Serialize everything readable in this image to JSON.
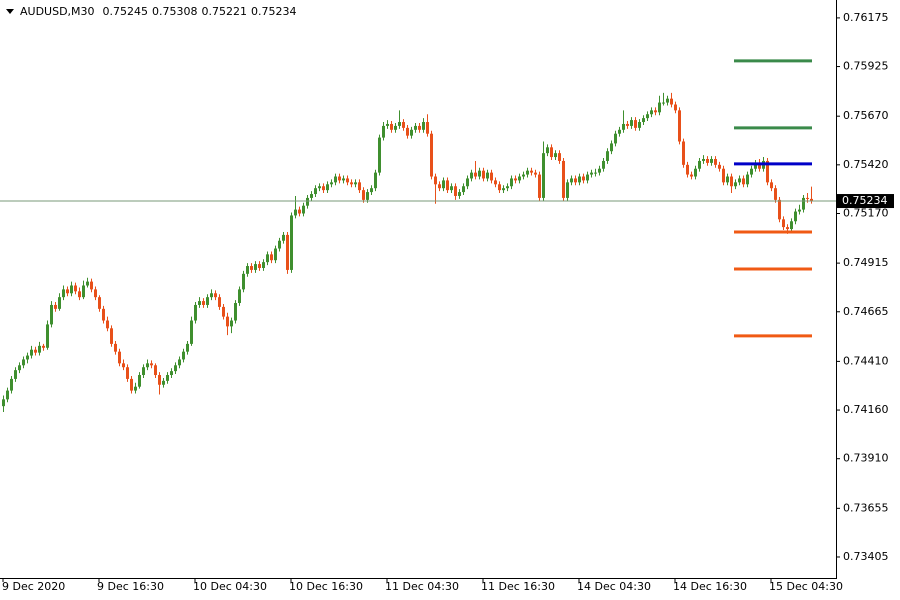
{
  "chart_data": {
    "type": "candlestick",
    "symbol": "AUDUSD,M30",
    "ylim": [
      0.73297,
      0.76267
    ],
    "yticks": [
      0.76175,
      0.75925,
      {
        "value": 0.7567,
        "label": "0.75670"
      },
      {
        "value": 0.7542,
        "label": "0.75420"
      },
      {
        "value": 0.7517,
        "label": "0.75170"
      },
      0.74915,
      0.74665,
      {
        "value": 0.7441,
        "label": "0.74410"
      },
      {
        "value": 0.7416,
        "label": "0.74160"
      },
      {
        "value": 0.7391,
        "label": "0.73910"
      },
      0.73655,
      0.73405
    ],
    "xticks": [
      {
        "value": 0,
        "label": "9 Dec 2020"
      },
      {
        "value": 24,
        "label": "9 Dec 16:30"
      },
      {
        "value": 48,
        "label": "10 Dec 04:30"
      },
      {
        "value": 72,
        "label": "10 Dec 16:30"
      },
      {
        "value": 96,
        "label": "11 Dec 04:30"
      },
      {
        "value": 120,
        "label": "11 Dec 16:30"
      },
      {
        "value": 144,
        "label": "14 Dec 04:30"
      },
      {
        "value": 168,
        "label": "14 Dec 16:30"
      },
      {
        "value": 192,
        "label": "15 Dec 04:30"
      }
    ],
    "up_color": "#3f8f2f",
    "down_color": "#e8501a",
    "levels": [
      {
        "value": 0.75954,
        "color": "#3a8a4a"
      },
      {
        "value": 0.7561,
        "color": "#3a8a4a"
      },
      {
        "value": 0.75425,
        "color": "#0000c8"
      },
      {
        "value": 0.75075,
        "color": "#f05a14"
      },
      {
        "value": 0.74885,
        "color": "#f05a14"
      },
      {
        "value": 0.74541,
        "color": "#f05a14"
      }
    ],
    "candles": [
      [
        0.7418,
        0.74235,
        0.7415,
        0.74215
      ],
      [
        0.74215,
        0.74275,
        0.742,
        0.7426
      ],
      [
        0.7426,
        0.74335,
        0.74245,
        0.7432
      ],
      [
        0.7432,
        0.7438,
        0.74305,
        0.74365
      ],
      [
        0.74365,
        0.74405,
        0.7435,
        0.7439
      ],
      [
        0.7439,
        0.74435,
        0.74375,
        0.7442
      ],
      [
        0.7442,
        0.74455,
        0.744,
        0.7444
      ],
      [
        0.7444,
        0.7449,
        0.74425,
        0.7447
      ],
      [
        0.7447,
        0.74485,
        0.7444,
        0.74455
      ],
      [
        0.74455,
        0.7451,
        0.7444,
        0.7449
      ],
      [
        0.7449,
        0.745,
        0.74465,
        0.7448
      ],
      [
        0.7448,
        0.7462,
        0.7447,
        0.746
      ],
      [
        0.746,
        0.7472,
        0.74585,
        0.747
      ],
      [
        0.747,
        0.74715,
        0.74665,
        0.7468
      ],
      [
        0.7468,
        0.7476,
        0.7467,
        0.7474
      ],
      [
        0.7474,
        0.748,
        0.74725,
        0.7478
      ],
      [
        0.7478,
        0.74795,
        0.74745,
        0.7476
      ],
      [
        0.7476,
        0.7482,
        0.74745,
        0.748
      ],
      [
        0.748,
        0.74815,
        0.74755,
        0.7477
      ],
      [
        0.7477,
        0.7479,
        0.74725,
        0.7474
      ],
      [
        0.7474,
        0.74825,
        0.7473,
        0.748
      ],
      [
        0.748,
        0.7484,
        0.7479,
        0.7482
      ],
      [
        0.7482,
        0.74835,
        0.74765,
        0.7478
      ],
      [
        0.7478,
        0.74795,
        0.74725,
        0.7474
      ],
      [
        0.7474,
        0.7475,
        0.74665,
        0.7468
      ],
      [
        0.7468,
        0.74695,
        0.74605,
        0.7462
      ],
      [
        0.7462,
        0.7464,
        0.74565,
        0.7458
      ],
      [
        0.7458,
        0.74595,
        0.74485,
        0.745
      ],
      [
        0.745,
        0.74515,
        0.74445,
        0.7446
      ],
      [
        0.7446,
        0.74475,
        0.74385,
        0.744
      ],
      [
        0.744,
        0.7442,
        0.74365,
        0.7438
      ],
      [
        0.7438,
        0.74395,
        0.74305,
        0.7432
      ],
      [
        0.7432,
        0.74335,
        0.74245,
        0.7426
      ],
      [
        0.7426,
        0.743,
        0.74245,
        0.7428
      ],
      [
        0.7428,
        0.74355,
        0.7427,
        0.7434
      ],
      [
        0.7434,
        0.74395,
        0.74325,
        0.7438
      ],
      [
        0.7438,
        0.7442,
        0.74365,
        0.744
      ],
      [
        0.744,
        0.74415,
        0.74375,
        0.7439
      ],
      [
        0.7439,
        0.744,
        0.74325,
        0.7434
      ],
      [
        0.7434,
        0.74355,
        0.7424,
        0.7429
      ],
      [
        0.7429,
        0.74325,
        0.74275,
        0.7431
      ],
      [
        0.7431,
        0.74355,
        0.74295,
        0.7434
      ],
      [
        0.7434,
        0.74375,
        0.74325,
        0.7436
      ],
      [
        0.7436,
        0.74405,
        0.74345,
        0.7439
      ],
      [
        0.7439,
        0.74435,
        0.74375,
        0.7442
      ],
      [
        0.7442,
        0.74475,
        0.74405,
        0.7446
      ],
      [
        0.7446,
        0.74515,
        0.74445,
        0.745
      ],
      [
        0.745,
        0.7464,
        0.7449,
        0.7462
      ],
      [
        0.7462,
        0.74715,
        0.74605,
        0.747
      ],
      [
        0.747,
        0.7474,
        0.74685,
        0.7472
      ],
      [
        0.7472,
        0.74735,
        0.74685,
        0.747
      ],
      [
        0.747,
        0.74755,
        0.74685,
        0.7474
      ],
      [
        0.7474,
        0.7478,
        0.74725,
        0.7476
      ],
      [
        0.7476,
        0.74775,
        0.74725,
        0.7474
      ],
      [
        0.7474,
        0.74755,
        0.74675,
        0.7469
      ],
      [
        0.7469,
        0.74705,
        0.74625,
        0.7464
      ],
      [
        0.7464,
        0.7466,
        0.74545,
        0.7459
      ],
      [
        0.7459,
        0.74635,
        0.74555,
        0.7462
      ],
      [
        0.7462,
        0.74725,
        0.74605,
        0.7471
      ],
      [
        0.7471,
        0.74795,
        0.74695,
        0.7478
      ],
      [
        0.7478,
        0.74875,
        0.74765,
        0.7486
      ],
      [
        0.7486,
        0.74915,
        0.74845,
        0.749
      ],
      [
        0.749,
        0.74915,
        0.74865,
        0.7488
      ],
      [
        0.7488,
        0.74925,
        0.74865,
        0.7491
      ],
      [
        0.7491,
        0.74925,
        0.74875,
        0.7489
      ],
      [
        0.7489,
        0.74935,
        0.74875,
        0.7492
      ],
      [
        0.7492,
        0.74975,
        0.74905,
        0.7496
      ],
      [
        0.7496,
        0.74975,
        0.74915,
        0.7493
      ],
      [
        0.7493,
        0.75005,
        0.74915,
        0.7499
      ],
      [
        0.7499,
        0.75045,
        0.74975,
        0.7503
      ],
      [
        0.7503,
        0.75075,
        0.75015,
        0.7506
      ],
      [
        0.7506,
        0.75075,
        0.7486,
        0.7488
      ],
      [
        0.7488,
        0.75175,
        0.74865,
        0.7516
      ],
      [
        0.7516,
        0.7526,
        0.75145,
        0.7519
      ],
      [
        0.7519,
        0.75205,
        0.75155,
        0.7517
      ],
      [
        0.7517,
        0.75225,
        0.75155,
        0.7521
      ],
      [
        0.7521,
        0.75265,
        0.75195,
        0.7525
      ],
      [
        0.7525,
        0.75285,
        0.75235,
        0.7527
      ],
      [
        0.7527,
        0.75315,
        0.75255,
        0.753
      ],
      [
        0.753,
        0.75325,
        0.75285,
        0.7531
      ],
      [
        0.7531,
        0.75325,
        0.75275,
        0.7529
      ],
      [
        0.7529,
        0.75335,
        0.75275,
        0.7532
      ],
      [
        0.7532,
        0.75345,
        0.75305,
        0.7533
      ],
      [
        0.7533,
        0.75375,
        0.75315,
        0.7536
      ],
      [
        0.7536,
        0.75375,
        0.75325,
        0.7534
      ],
      [
        0.7534,
        0.75365,
        0.75325,
        0.7535
      ],
      [
        0.7535,
        0.75365,
        0.75315,
        0.7533
      ],
      [
        0.7533,
        0.75345,
        0.75305,
        0.7532
      ],
      [
        0.7532,
        0.75345,
        0.75305,
        0.7533
      ],
      [
        0.7533,
        0.75345,
        0.75275,
        0.7529
      ],
      [
        0.7529,
        0.75305,
        0.75225,
        0.7524
      ],
      [
        0.7524,
        0.75295,
        0.75225,
        0.7528
      ],
      [
        0.7528,
        0.75315,
        0.75265,
        0.753
      ],
      [
        0.753,
        0.75395,
        0.75285,
        0.7538
      ],
      [
        0.7538,
        0.75575,
        0.75365,
        0.7556
      ],
      [
        0.7556,
        0.7564,
        0.75545,
        0.7562
      ],
      [
        0.7562,
        0.7565,
        0.75605,
        0.7563
      ],
      [
        0.7563,
        0.75645,
        0.75585,
        0.756
      ],
      [
        0.756,
        0.75635,
        0.75585,
        0.7562
      ],
      [
        0.7562,
        0.757,
        0.75605,
        0.7564
      ],
      [
        0.7564,
        0.75655,
        0.75595,
        0.7561
      ],
      [
        0.7561,
        0.75625,
        0.75555,
        0.7557
      ],
      [
        0.7557,
        0.75615,
        0.75555,
        0.756
      ],
      [
        0.756,
        0.75635,
        0.75585,
        0.7562
      ],
      [
        0.7562,
        0.75635,
        0.75585,
        0.756
      ],
      [
        0.756,
        0.7566,
        0.75585,
        0.7564
      ],
      [
        0.7564,
        0.7568,
        0.75565,
        0.7558
      ],
      [
        0.7558,
        0.75595,
        0.75345,
        0.7536
      ],
      [
        0.7536,
        0.75375,
        0.7522,
        0.7532
      ],
      [
        0.7532,
        0.75335,
        0.75285,
        0.753
      ],
      [
        0.753,
        0.75355,
        0.75285,
        0.7534
      ],
      [
        0.7534,
        0.75355,
        0.75275,
        0.7529
      ],
      [
        0.7529,
        0.75325,
        0.75275,
        0.7531
      ],
      [
        0.7531,
        0.75325,
        0.7524,
        0.7526
      ],
      [
        0.7526,
        0.75295,
        0.75245,
        0.7528
      ],
      [
        0.7528,
        0.75325,
        0.75265,
        0.7531
      ],
      [
        0.7531,
        0.75365,
        0.75295,
        0.7535
      ],
      [
        0.7535,
        0.75395,
        0.75335,
        0.7538
      ],
      [
        0.7538,
        0.7544,
        0.75345,
        0.7536
      ],
      [
        0.7536,
        0.75405,
        0.75345,
        0.7539
      ],
      [
        0.7539,
        0.75405,
        0.75335,
        0.7535
      ],
      [
        0.7535,
        0.75395,
        0.75335,
        0.7538
      ],
      [
        0.7538,
        0.75395,
        0.75325,
        0.7534
      ],
      [
        0.7534,
        0.75355,
        0.75305,
        0.7532
      ],
      [
        0.7532,
        0.75335,
        0.75275,
        0.7529
      ],
      [
        0.7529,
        0.75315,
        0.75275,
        0.753
      ],
      [
        0.753,
        0.75325,
        0.75285,
        0.7531
      ],
      [
        0.7531,
        0.75365,
        0.75295,
        0.7535
      ],
      [
        0.7535,
        0.75365,
        0.75325,
        0.7534
      ],
      [
        0.7534,
        0.75375,
        0.75325,
        0.7536
      ],
      [
        0.7536,
        0.75385,
        0.75345,
        0.7537
      ],
      [
        0.7537,
        0.75405,
        0.75355,
        0.7539
      ],
      [
        0.7539,
        0.75405,
        0.75365,
        0.7538
      ],
      [
        0.7538,
        0.75395,
        0.75355,
        0.7537
      ],
      [
        0.7537,
        0.75385,
        0.75235,
        0.7525
      ],
      [
        0.7525,
        0.7554,
        0.75235,
        0.7548
      ],
      [
        0.7548,
        0.75525,
        0.75465,
        0.7551
      ],
      [
        0.7551,
        0.75525,
        0.75445,
        0.7546
      ],
      [
        0.7546,
        0.75495,
        0.75445,
        0.7548
      ],
      [
        0.7548,
        0.75495,
        0.75425,
        0.7544
      ],
      [
        0.7544,
        0.75455,
        0.75235,
        0.7525
      ],
      [
        0.7525,
        0.75345,
        0.75235,
        0.7533
      ],
      [
        0.7533,
        0.75365,
        0.75315,
        0.7535
      ],
      [
        0.7535,
        0.75365,
        0.75315,
        0.7533
      ],
      [
        0.7533,
        0.75375,
        0.75315,
        0.7536
      ],
      [
        0.7536,
        0.75375,
        0.75325,
        0.7534
      ],
      [
        0.7534,
        0.75385,
        0.75325,
        0.7537
      ],
      [
        0.7537,
        0.75395,
        0.75355,
        0.7538
      ],
      [
        0.7538,
        0.754,
        0.7536,
        0.7538
      ],
      [
        0.7538,
        0.75415,
        0.75365,
        0.754
      ],
      [
        0.754,
        0.75455,
        0.75385,
        0.7544
      ],
      [
        0.7544,
        0.75505,
        0.75425,
        0.7549
      ],
      [
        0.7549,
        0.75545,
        0.75475,
        0.7553
      ],
      [
        0.7553,
        0.75595,
        0.75515,
        0.7558
      ],
      [
        0.7558,
        0.75615,
        0.75565,
        0.756
      ],
      [
        0.756,
        0.757,
        0.75585,
        0.7563
      ],
      [
        0.7563,
        0.75645,
        0.75605,
        0.7562
      ],
      [
        0.7562,
        0.75665,
        0.75605,
        0.7565
      ],
      [
        0.7565,
        0.75665,
        0.75595,
        0.7561
      ],
      [
        0.7561,
        0.75655,
        0.75595,
        0.7564
      ],
      [
        0.7564,
        0.75675,
        0.75625,
        0.7566
      ],
      [
        0.7566,
        0.75695,
        0.75645,
        0.7568
      ],
      [
        0.7568,
        0.75715,
        0.75665,
        0.757
      ],
      [
        0.757,
        0.75715,
        0.75675,
        0.7569
      ],
      [
        0.7569,
        0.75775,
        0.75675,
        0.7574
      ],
      [
        0.7574,
        0.7579,
        0.75725,
        0.7574
      ],
      [
        0.7574,
        0.75775,
        0.75725,
        0.7576
      ],
      [
        0.7576,
        0.7579,
        0.75715,
        0.7573
      ],
      [
        0.7573,
        0.75745,
        0.75685,
        0.757
      ],
      [
        0.757,
        0.75715,
        0.75525,
        0.7554
      ],
      [
        0.7554,
        0.75555,
        0.75405,
        0.7542
      ],
      [
        0.7542,
        0.75435,
        0.75355,
        0.7537
      ],
      [
        0.7537,
        0.75385,
        0.75345,
        0.7536
      ],
      [
        0.7536,
        0.75415,
        0.75345,
        0.754
      ],
      [
        0.754,
        0.75455,
        0.75385,
        0.7544
      ],
      [
        0.7544,
        0.7547,
        0.75425,
        0.7545
      ],
      [
        0.7545,
        0.75465,
        0.75415,
        0.7543
      ],
      [
        0.7543,
        0.75465,
        0.75415,
        0.7545
      ],
      [
        0.7545,
        0.75465,
        0.75405,
        0.7542
      ],
      [
        0.7542,
        0.75435,
        0.75385,
        0.754
      ],
      [
        0.754,
        0.75415,
        0.75315,
        0.7533
      ],
      [
        0.7533,
        0.75375,
        0.75315,
        0.7536
      ],
      [
        0.7536,
        0.75375,
        0.75275,
        0.7531
      ],
      [
        0.7531,
        0.75345,
        0.75295,
        0.7533
      ],
      [
        0.7533,
        0.75365,
        0.75315,
        0.7535
      ],
      [
        0.7535,
        0.75365,
        0.75305,
        0.7532
      ],
      [
        0.7532,
        0.75385,
        0.75305,
        0.7537
      ],
      [
        0.7537,
        0.75415,
        0.75355,
        0.754
      ],
      [
        0.754,
        0.75445,
        0.75385,
        0.7543
      ],
      [
        0.7543,
        0.7545,
        0.75385,
        0.754
      ],
      [
        0.754,
        0.7546,
        0.75385,
        0.7544
      ],
      [
        0.7544,
        0.75455,
        0.75315,
        0.7533
      ],
      [
        0.7533,
        0.75345,
        0.75285,
        0.753
      ],
      [
        0.753,
        0.75315,
        0.75225,
        0.7524
      ],
      [
        0.7524,
        0.75255,
        0.75125,
        0.7514
      ],
      [
        0.7514,
        0.75155,
        0.75085,
        0.751
      ],
      [
        0.751,
        0.75115,
        0.75065,
        0.7509
      ],
      [
        0.7509,
        0.75145,
        0.75075,
        0.7513
      ],
      [
        0.7513,
        0.75195,
        0.75115,
        0.7518
      ],
      [
        0.7518,
        0.75215,
        0.75165,
        0.7519
      ],
      [
        0.7519,
        0.75265,
        0.75175,
        0.7525
      ],
      [
        0.7525,
        0.75275,
        0.75225,
        0.75245
      ],
      [
        0.75245,
        0.75308,
        0.75221,
        0.75234
      ]
    ]
  }
}
